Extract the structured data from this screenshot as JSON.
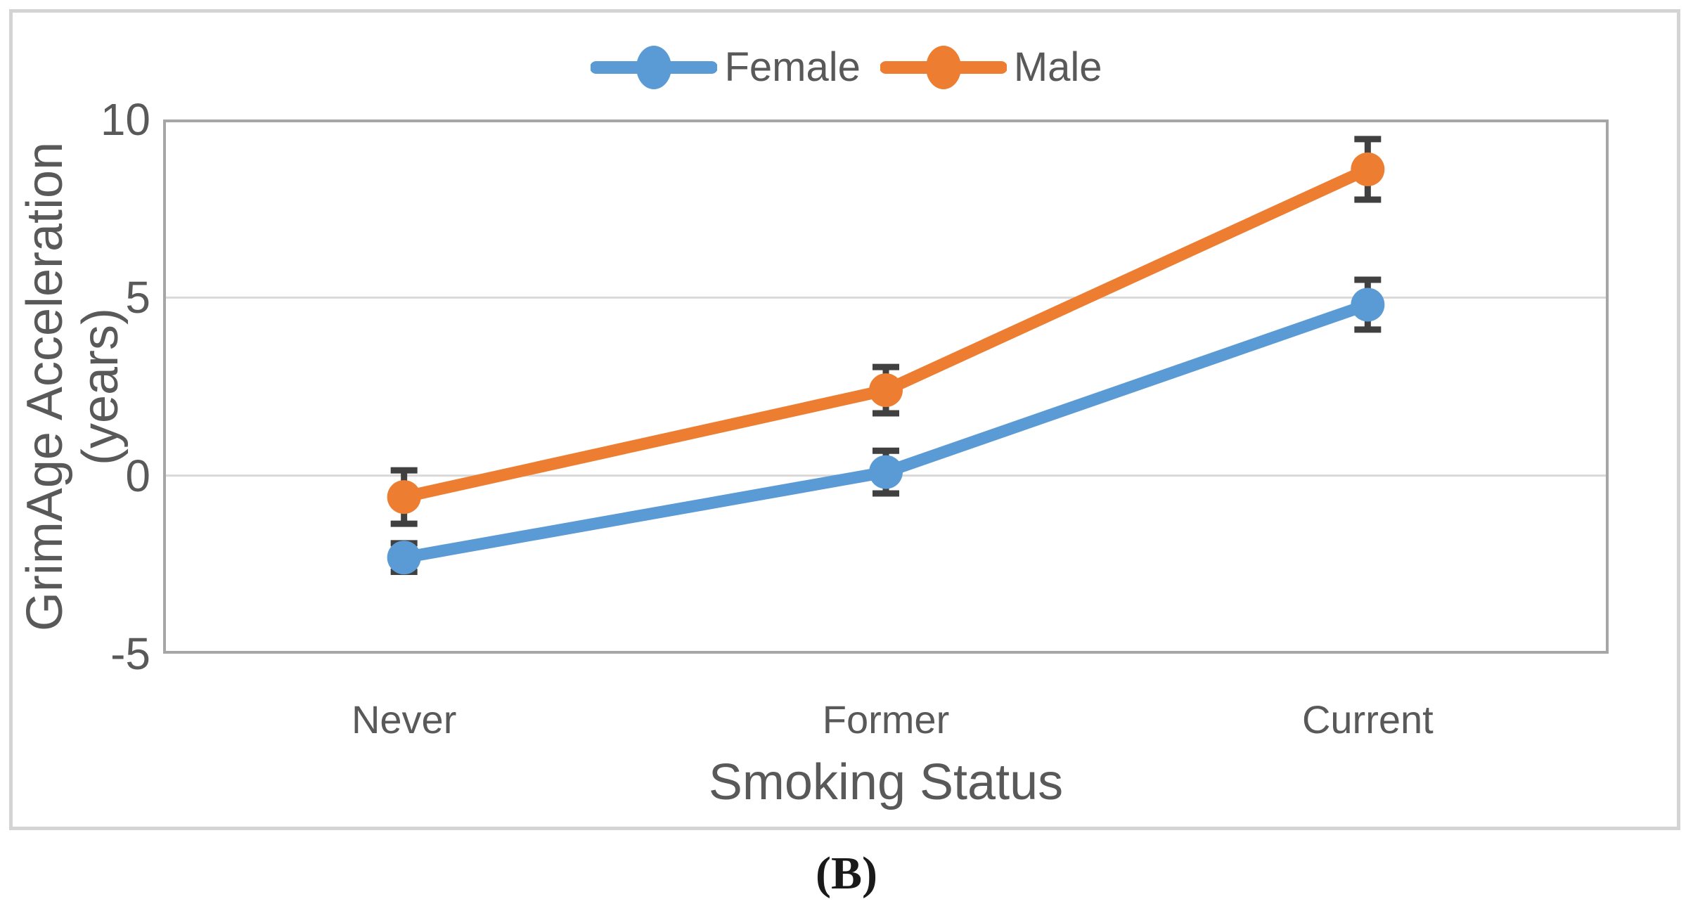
{
  "caption": "(B)",
  "chart_data": {
    "type": "line",
    "title": "",
    "categories": [
      "Never",
      "Former",
      "Current"
    ],
    "series": [
      {
        "name": "Female",
        "color": "#5B9BD5",
        "values": [
          -2.3,
          0.1,
          4.8
        ],
        "error_bars": [
          0.4,
          0.6,
          0.7
        ]
      },
      {
        "name": "Male",
        "color": "#ED7D31",
        "values": [
          -0.6,
          2.4,
          8.6
        ],
        "error_bars": [
          0.75,
          0.65,
          0.85
        ]
      }
    ],
    "xlabel": "Smoking Status",
    "ylabel": "GrimAge Acceleration (years)",
    "ylabel_lines": [
      "GrimAge Acceleration",
      "(years)"
    ],
    "ylim": [
      -5,
      10
    ],
    "yticks": [
      10,
      5,
      0,
      -5
    ],
    "grid": true,
    "legend_position": "top-center",
    "marker": "circle",
    "colors": {
      "gridline": "#D9D9D9",
      "plot_border": "#A6A6A6",
      "outer_border": "#D4D4D4",
      "text": "#595959",
      "error_bar": "#404040",
      "background": "#FFFFFF"
    }
  }
}
